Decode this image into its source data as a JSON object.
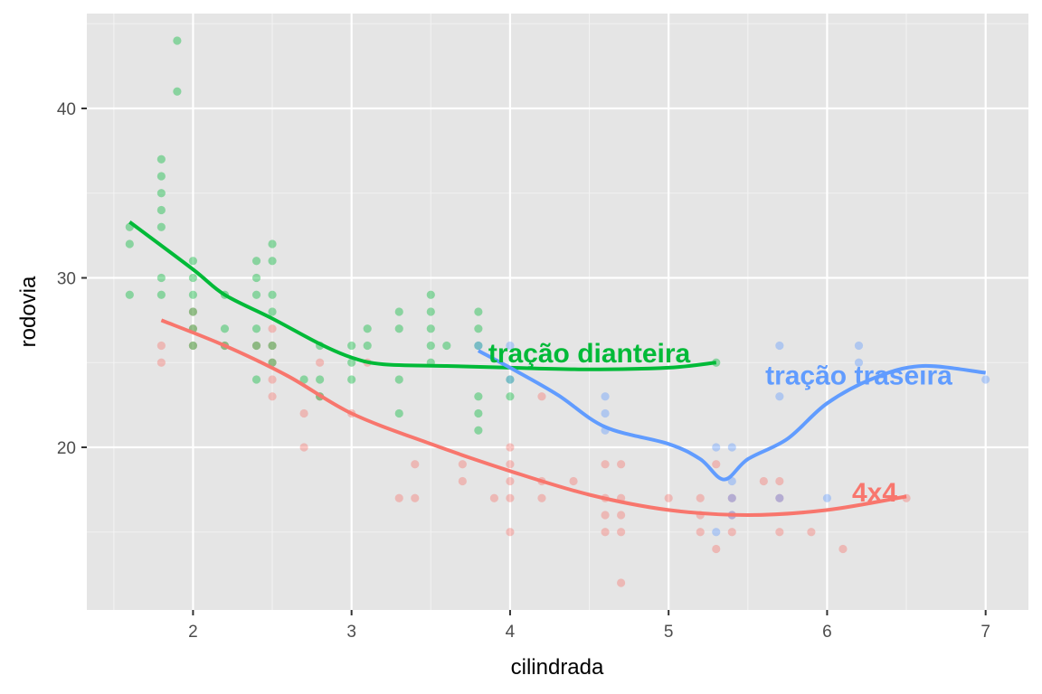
{
  "chart_data": {
    "type": "scatter",
    "xlabel": "cilindrada",
    "ylabel": "rodovia",
    "xlim": [
      1.33,
      7.27
    ],
    "ylim": [
      10.4,
      45.6
    ],
    "xticks": [
      2,
      3,
      4,
      5,
      6,
      7
    ],
    "yticks": [
      20,
      30,
      40
    ],
    "grid": true,
    "background": "#e5e5e5",
    "series": [
      {
        "name": "4x4",
        "color": "#F8766D",
        "label_at": [
          6.3,
          17.4
        ],
        "points": [
          [
            1.8,
            26
          ],
          [
            1.8,
            25
          ],
          [
            2.0,
            28
          ],
          [
            2.0,
            27
          ],
          [
            2.0,
            26
          ],
          [
            2.2,
            26
          ],
          [
            2.4,
            26
          ],
          [
            2.5,
            27
          ],
          [
            2.5,
            26
          ],
          [
            2.5,
            25
          ],
          [
            2.5,
            24
          ],
          [
            2.5,
            23
          ],
          [
            2.7,
            22
          ],
          [
            2.7,
            20
          ],
          [
            2.8,
            25
          ],
          [
            2.8,
            23
          ],
          [
            3.0,
            22
          ],
          [
            3.1,
            25
          ],
          [
            3.3,
            17
          ],
          [
            3.4,
            19
          ],
          [
            3.4,
            17
          ],
          [
            3.7,
            19
          ],
          [
            3.7,
            18
          ],
          [
            3.9,
            17
          ],
          [
            4.0,
            20
          ],
          [
            4.0,
            19
          ],
          [
            4.0,
            18
          ],
          [
            4.0,
            17
          ],
          [
            4.0,
            15
          ],
          [
            4.2,
            23
          ],
          [
            4.2,
            18
          ],
          [
            4.2,
            17
          ],
          [
            4.4,
            18
          ],
          [
            4.6,
            19
          ],
          [
            4.6,
            17
          ],
          [
            4.6,
            16
          ],
          [
            4.6,
            15
          ],
          [
            4.7,
            19
          ],
          [
            4.7,
            17
          ],
          [
            4.7,
            16
          ],
          [
            4.7,
            15
          ],
          [
            4.7,
            12
          ],
          [
            5.0,
            17
          ],
          [
            5.2,
            17
          ],
          [
            5.2,
            16
          ],
          [
            5.2,
            15
          ],
          [
            5.3,
            19
          ],
          [
            5.3,
            14
          ],
          [
            5.4,
            17
          ],
          [
            5.4,
            16
          ],
          [
            5.4,
            15
          ],
          [
            5.6,
            18
          ],
          [
            5.7,
            18
          ],
          [
            5.7,
            17
          ],
          [
            5.7,
            15
          ],
          [
            5.9,
            15
          ],
          [
            6.1,
            14
          ],
          [
            6.5,
            17
          ]
        ],
        "smooth": [
          [
            1.8,
            27.5
          ],
          [
            2.2,
            26.0
          ],
          [
            2.6,
            24.2
          ],
          [
            3.0,
            22.0
          ],
          [
            3.5,
            20.2
          ],
          [
            4.0,
            18.6
          ],
          [
            4.5,
            17.2
          ],
          [
            5.0,
            16.3
          ],
          [
            5.5,
            16.0
          ],
          [
            6.0,
            16.3
          ],
          [
            6.5,
            17.1
          ]
        ]
      },
      {
        "name": "tração dianteira",
        "color": "#00BA38",
        "label_at": [
          4.5,
          25.6
        ],
        "points": [
          [
            1.6,
            33
          ],
          [
            1.6,
            32
          ],
          [
            1.6,
            29
          ],
          [
            1.8,
            37
          ],
          [
            1.8,
            36
          ],
          [
            1.8,
            35
          ],
          [
            1.8,
            34
          ],
          [
            1.8,
            33
          ],
          [
            1.8,
            30
          ],
          [
            1.8,
            29
          ],
          [
            1.9,
            44
          ],
          [
            1.9,
            41
          ],
          [
            2.0,
            31
          ],
          [
            2.0,
            30
          ],
          [
            2.0,
            29
          ],
          [
            2.0,
            28
          ],
          [
            2.0,
            27
          ],
          [
            2.0,
            26
          ],
          [
            2.2,
            29
          ],
          [
            2.2,
            27
          ],
          [
            2.2,
            26
          ],
          [
            2.4,
            31
          ],
          [
            2.4,
            30
          ],
          [
            2.4,
            29
          ],
          [
            2.4,
            27
          ],
          [
            2.4,
            26
          ],
          [
            2.4,
            24
          ],
          [
            2.5,
            32
          ],
          [
            2.5,
            31
          ],
          [
            2.5,
            29
          ],
          [
            2.5,
            28
          ],
          [
            2.5,
            26
          ],
          [
            2.5,
            25
          ],
          [
            2.7,
            24
          ],
          [
            2.8,
            26
          ],
          [
            2.8,
            24
          ],
          [
            2.8,
            23
          ],
          [
            3.0,
            26
          ],
          [
            3.0,
            25
          ],
          [
            3.0,
            24
          ],
          [
            3.1,
            27
          ],
          [
            3.1,
            26
          ],
          [
            3.3,
            28
          ],
          [
            3.3,
            27
          ],
          [
            3.3,
            24
          ],
          [
            3.3,
            22
          ],
          [
            3.5,
            29
          ],
          [
            3.5,
            28
          ],
          [
            3.5,
            27
          ],
          [
            3.5,
            26
          ],
          [
            3.5,
            25
          ],
          [
            3.6,
            26
          ],
          [
            3.8,
            28
          ],
          [
            3.8,
            27
          ],
          [
            3.8,
            26
          ],
          [
            3.8,
            23
          ],
          [
            3.8,
            22
          ],
          [
            3.8,
            21
          ],
          [
            4.0,
            24
          ],
          [
            4.0,
            23
          ],
          [
            5.3,
            25
          ]
        ],
        "smooth": [
          [
            1.6,
            33.3
          ],
          [
            2.0,
            30.5
          ],
          [
            2.2,
            29.0
          ],
          [
            2.5,
            27.6
          ],
          [
            2.8,
            26.1
          ],
          [
            3.0,
            25.3
          ],
          [
            3.2,
            24.9
          ],
          [
            3.6,
            24.8
          ],
          [
            4.0,
            24.7
          ],
          [
            4.5,
            24.6
          ],
          [
            5.0,
            24.7
          ],
          [
            5.3,
            25.0
          ]
        ]
      },
      {
        "name": "tração traseira",
        "color": "#619CFF",
        "label_at": [
          6.2,
          24.3
        ],
        "points": [
          [
            3.8,
            26
          ],
          [
            4.0,
            26
          ],
          [
            4.0,
            24
          ],
          [
            4.6,
            23
          ],
          [
            4.6,
            22
          ],
          [
            4.6,
            21
          ],
          [
            5.3,
            20
          ],
          [
            5.3,
            15
          ],
          [
            5.4,
            20
          ],
          [
            5.4,
            18
          ],
          [
            5.4,
            17
          ],
          [
            5.4,
            16
          ],
          [
            5.7,
            26
          ],
          [
            5.7,
            23
          ],
          [
            5.7,
            17
          ],
          [
            6.0,
            17
          ],
          [
            6.2,
            26
          ],
          [
            6.2,
            25
          ],
          [
            7.0,
            24
          ]
        ],
        "smooth": [
          [
            3.8,
            25.7
          ],
          [
            4.0,
            24.7
          ],
          [
            4.3,
            23.1
          ],
          [
            4.6,
            21.2
          ],
          [
            5.0,
            20.2
          ],
          [
            5.2,
            19.3
          ],
          [
            5.35,
            18.1
          ],
          [
            5.5,
            19.3
          ],
          [
            5.75,
            20.5
          ],
          [
            6.0,
            22.6
          ],
          [
            6.3,
            24.1
          ],
          [
            6.6,
            24.8
          ],
          [
            7.0,
            24.4
          ]
        ]
      }
    ]
  }
}
